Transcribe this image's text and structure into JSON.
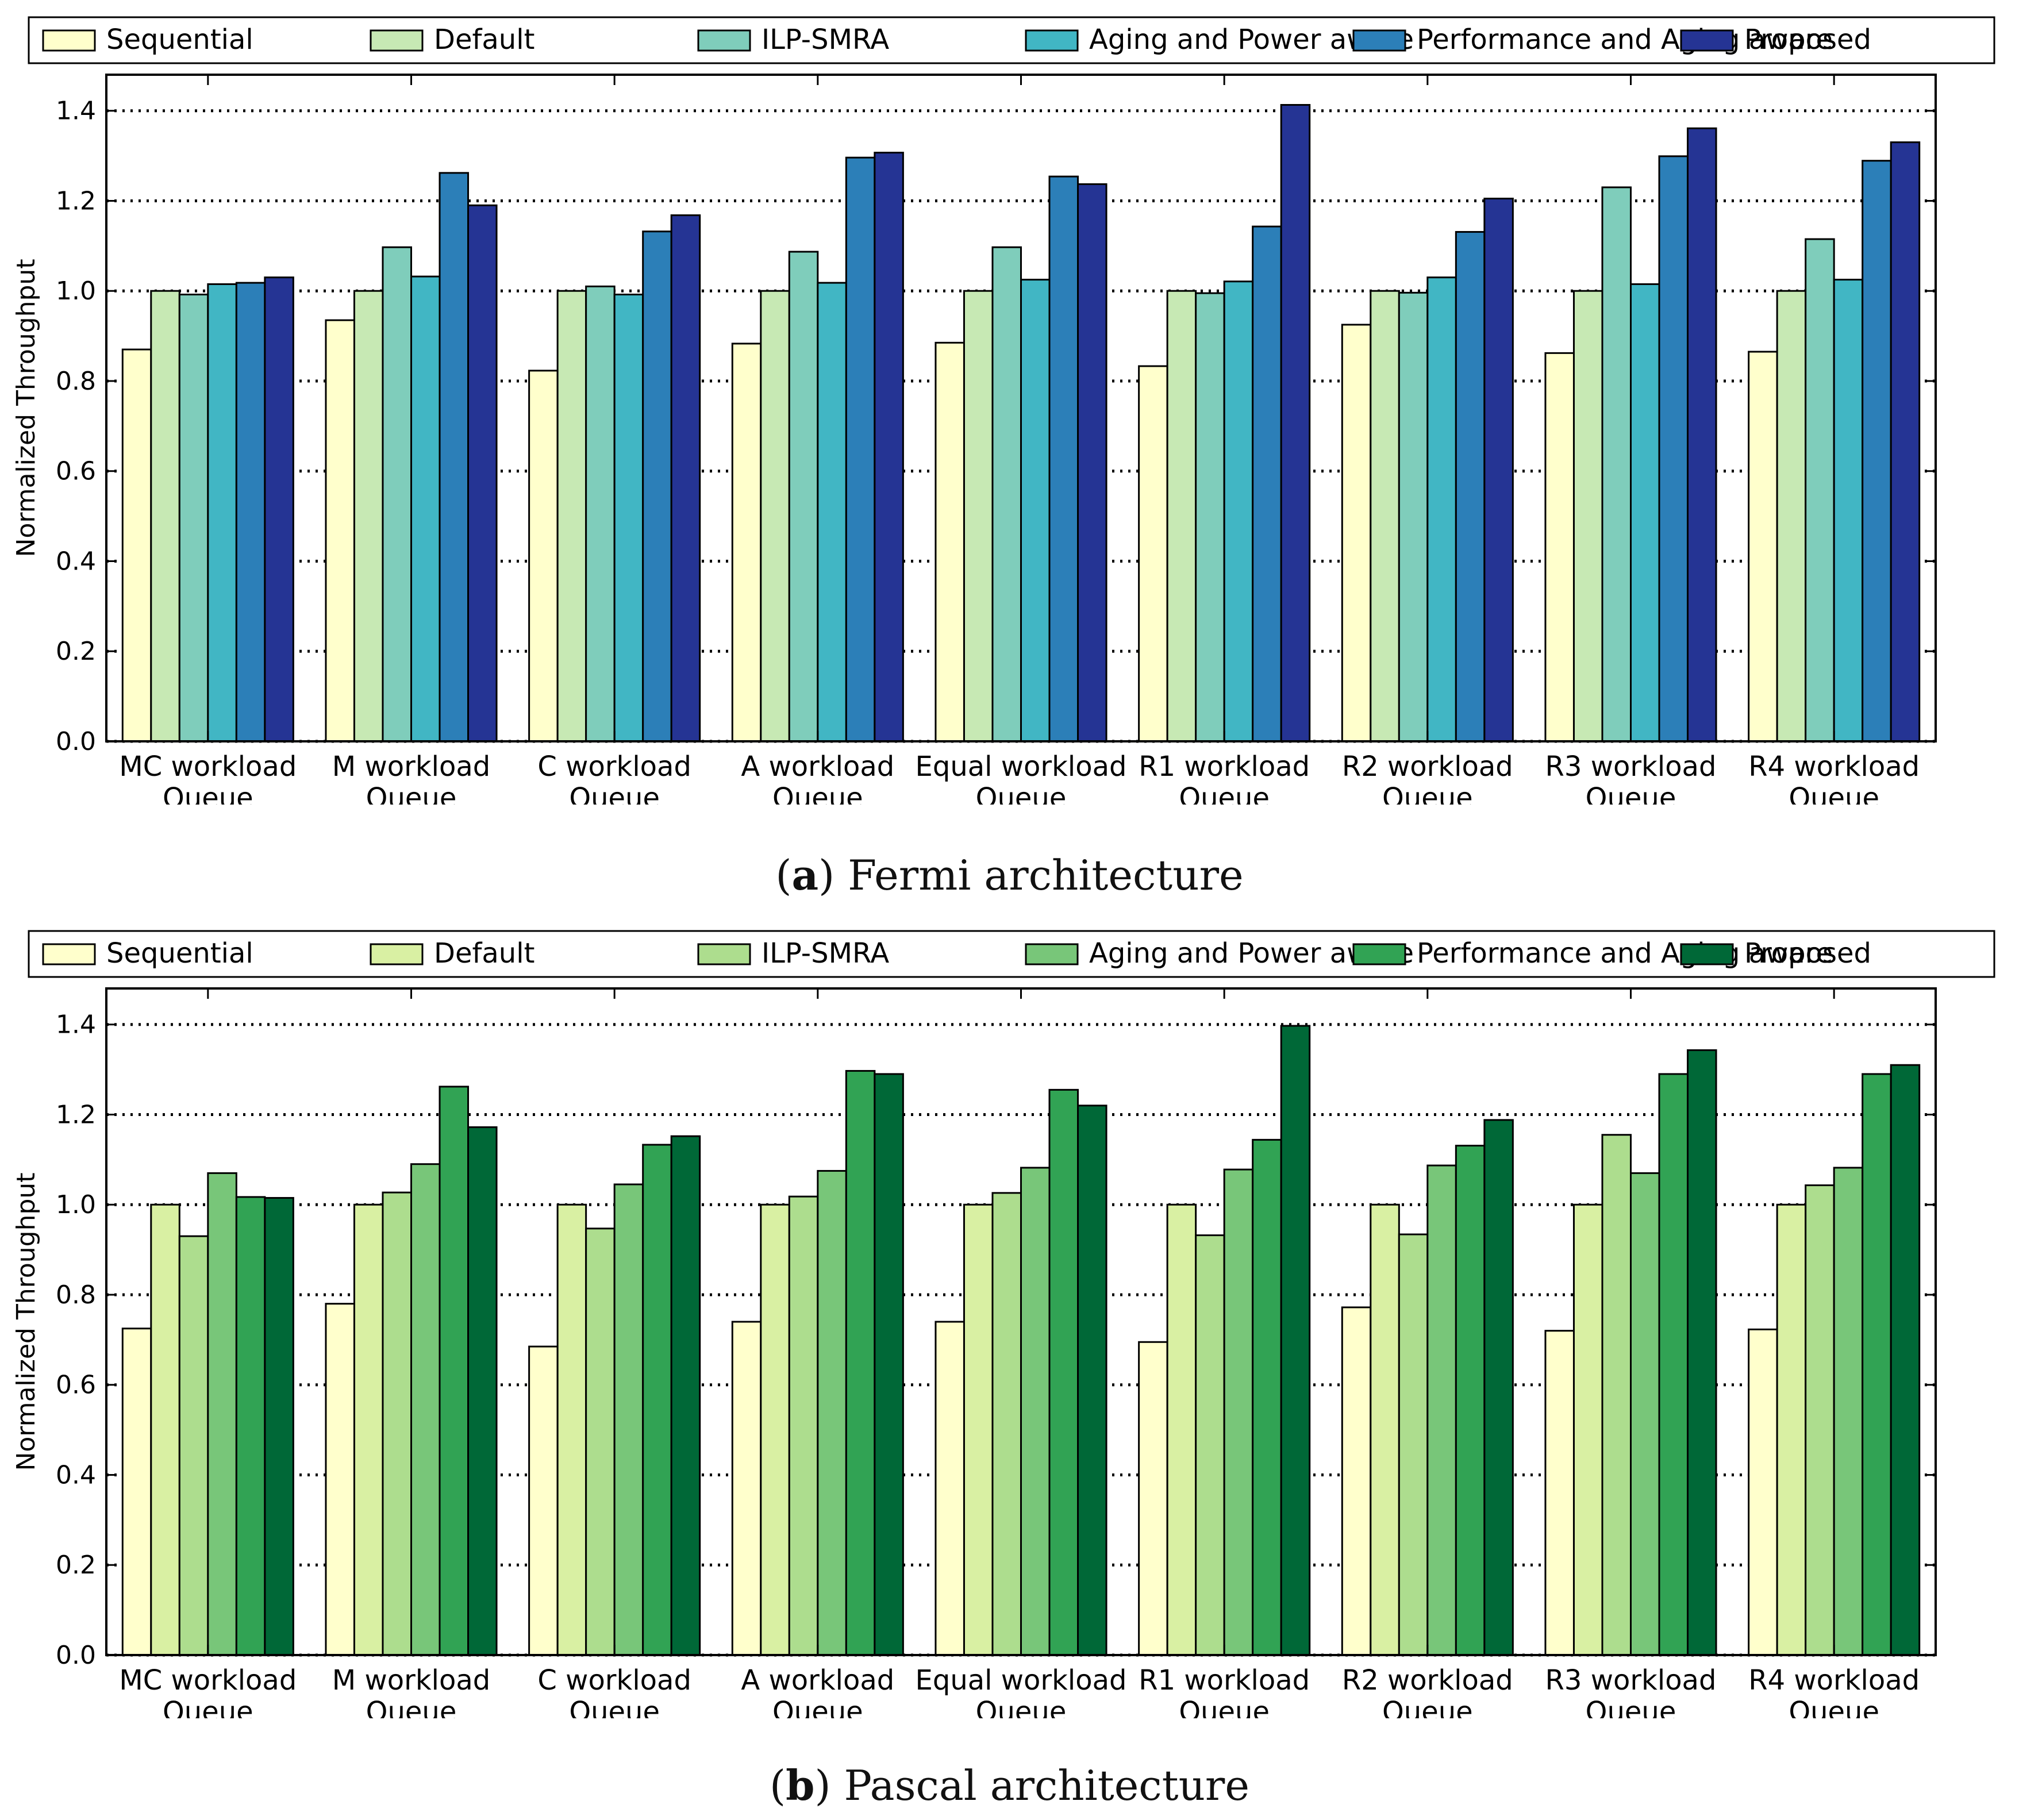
{
  "panels": [
    {
      "caption_letter": "a",
      "caption_text": ") Fermi architecture",
      "chart_data": {
        "type": "bar",
        "title": "",
        "xlabel": "",
        "ylabel": "Normalized Throughput",
        "ylim": [
          0,
          1.48
        ],
        "yticks": [
          "0.0",
          "0.2",
          "0.4",
          "0.6",
          "0.8",
          "1.0",
          "1.2",
          "1.4"
        ],
        "grid": "horizontal dotted",
        "legend_position": "top",
        "categories": [
          [
            "MC workload",
            "Queue"
          ],
          [
            "M workload",
            "Queue"
          ],
          [
            "C workload",
            "Queue"
          ],
          [
            "A workload",
            "Queue"
          ],
          [
            "Equal workload",
            "Queue"
          ],
          [
            "R1 workload",
            "Queue"
          ],
          [
            "R2 workload",
            "Queue"
          ],
          [
            "R3 workload",
            "Queue"
          ],
          [
            "R4 workload",
            "Queue"
          ]
        ],
        "series": [
          {
            "name": "Sequential",
            "color": "#ffffcc",
            "values": [
              0.87,
              0.935,
              0.823,
              0.883,
              0.885,
              0.833,
              0.925,
              0.862,
              0.865
            ]
          },
          {
            "name": "Default",
            "color": "#c7e9b4",
            "values": [
              1.0,
              1.0,
              1.0,
              1.0,
              1.0,
              1.0,
              1.0,
              1.0,
              1.0
            ]
          },
          {
            "name": "ILP-SMRA",
            "color": "#7fcdbb",
            "values": [
              0.992,
              1.097,
              1.01,
              1.087,
              1.097,
              0.995,
              0.996,
              1.23,
              1.115
            ]
          },
          {
            "name": "Aging and Power aware",
            "color": "#41b6c4",
            "values": [
              1.015,
              1.032,
              0.992,
              1.018,
              1.025,
              1.021,
              1.03,
              1.015,
              1.025
            ]
          },
          {
            "name": "Performance and Aging aware",
            "color": "#2c7fb8",
            "values": [
              1.018,
              1.262,
              1.132,
              1.296,
              1.254,
              1.143,
              1.131,
              1.299,
              1.289
            ]
          },
          {
            "name": "Proposed",
            "color": "#253494",
            "values": [
              1.03,
              1.19,
              1.168,
              1.307,
              1.237,
              1.413,
              1.205,
              1.361,
              1.33
            ]
          }
        ]
      }
    },
    {
      "caption_letter": "b",
      "caption_text": ") Pascal architecture",
      "chart_data": {
        "type": "bar",
        "title": "",
        "xlabel": "",
        "ylabel": "Normalized Throughput",
        "ylim": [
          0,
          1.48
        ],
        "yticks": [
          "0.0",
          "0.2",
          "0.4",
          "0.6",
          "0.8",
          "1.0",
          "1.2",
          "1.4"
        ],
        "grid": "horizontal dotted",
        "legend_position": "top",
        "categories": [
          [
            "MC workload",
            "Queue"
          ],
          [
            "M workload",
            "Queue"
          ],
          [
            "C workload",
            "Queue"
          ],
          [
            "A workload",
            "Queue"
          ],
          [
            "Equal workload",
            "Queue"
          ],
          [
            "R1 workload",
            "Queue"
          ],
          [
            "R2 workload",
            "Queue"
          ],
          [
            "R3 workload",
            "Queue"
          ],
          [
            "R4 workload",
            "Queue"
          ]
        ],
        "series": [
          {
            "name": "Sequential",
            "color": "#ffffcc",
            "values": [
              0.725,
              0.78,
              0.685,
              0.74,
              0.74,
              0.695,
              0.772,
              0.72,
              0.723
            ]
          },
          {
            "name": "Default",
            "color": "#d9f0a3",
            "values": [
              1.0,
              1.0,
              1.0,
              1.0,
              1.0,
              1.0,
              1.0,
              1.0,
              1.0
            ]
          },
          {
            "name": "ILP-SMRA",
            "color": "#addd8e",
            "values": [
              0.93,
              1.027,
              0.947,
              1.018,
              1.026,
              0.932,
              0.934,
              1.155,
              1.043
            ]
          },
          {
            "name": "Aging and Power aware",
            "color": "#78c679",
            "values": [
              1.07,
              1.09,
              1.045,
              1.075,
              1.082,
              1.078,
              1.087,
              1.07,
              1.082
            ]
          },
          {
            "name": "Performance and Aging aware",
            "color": "#31a354",
            "values": [
              1.017,
              1.262,
              1.133,
              1.297,
              1.255,
              1.144,
              1.131,
              1.29,
              1.29
            ]
          },
          {
            "name": "Proposed",
            "color": "#006837",
            "values": [
              1.015,
              1.172,
              1.152,
              1.29,
              1.22,
              1.397,
              1.188,
              1.343,
              1.31
            ]
          }
        ]
      }
    }
  ]
}
